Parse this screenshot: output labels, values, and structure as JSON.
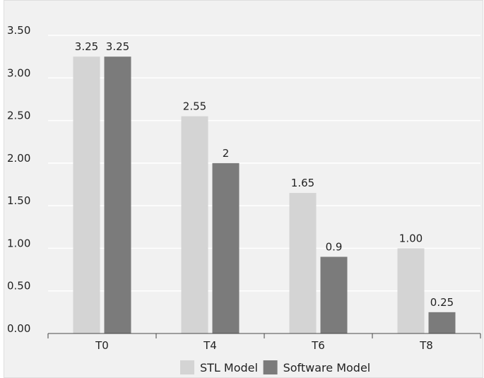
{
  "chart_data": {
    "type": "bar",
    "categories": [
      "T0",
      "T4",
      "T6",
      "T8"
    ],
    "series": [
      {
        "name": "STL Model",
        "values": [
          3.25,
          2.55,
          1.65,
          1.0
        ],
        "labels": [
          "3.25",
          "2.55",
          "1.65",
          "1.00"
        ],
        "color": "#d4d4d4"
      },
      {
        "name": "Software Model",
        "values": [
          3.25,
          2.0,
          0.9,
          0.25
        ],
        "labels": [
          "3.25",
          "2",
          "0.9",
          "0.25"
        ],
        "color": "#7b7b7b"
      }
    ],
    "y_ticks": [
      "0.00",
      "0.50",
      "1.00",
      "1.50",
      "2.00",
      "2.50",
      "3.00",
      "3.50"
    ],
    "ylim": [
      0,
      3.5
    ],
    "grid": true,
    "legend_position": "bottom",
    "background_color": "#f1f1f1",
    "grid_color": "#ffffff"
  }
}
